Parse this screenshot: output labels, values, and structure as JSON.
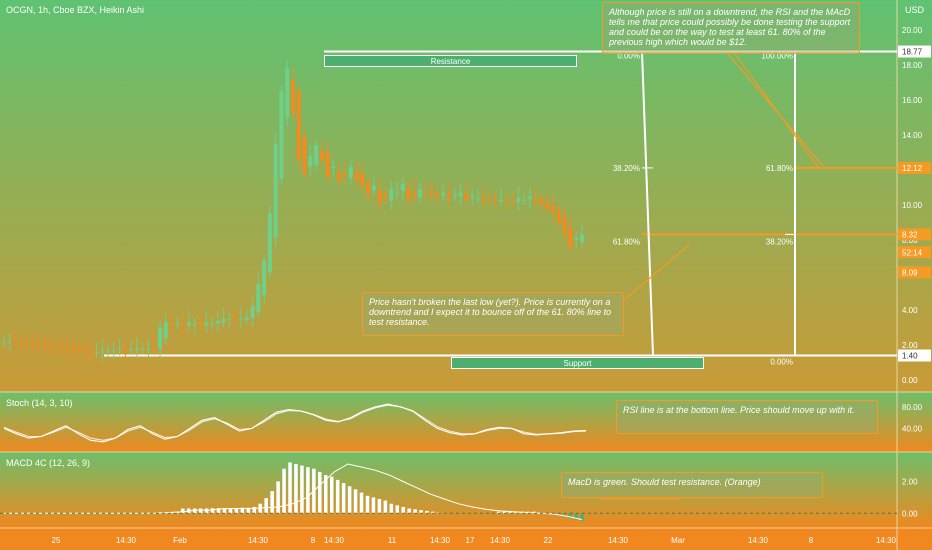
{
  "header": {
    "symbol": "OCGN, 1h, Cboe BZX, Heikin Ashi"
  },
  "currency": "USD",
  "colors": {
    "top": "#5fc272",
    "bottom": "#f58a1f",
    "up": "#6fd08a",
    "down": "#f58a1f",
    "line": "#ffffff",
    "accent": "#f59a23"
  },
  "chart_data": [
    {
      "type": "candlestick",
      "series": [
        {
          "name": "OCGN",
          "values": [
            2.2,
            2.2,
            2.15,
            2.1,
            2.1,
            2.05,
            2.0,
            1.95,
            1.9,
            1.85,
            1.8,
            1.75,
            1.7,
            1.65,
            1.6,
            1.55,
            1.6,
            1.65,
            1.7,
            1.7,
            1.75,
            1.7,
            1.75,
            1.8,
            1.8,
            1.8,
            1.75,
            3.0,
            3.3,
            3.1,
            3.2,
            3.0,
            3.3,
            3.2,
            3.1,
            3.3,
            3.2,
            3.4,
            3.5,
            3.5,
            3.4,
            3.5,
            3.6,
            4.2,
            5.5,
            6.8,
            9.5,
            13.5,
            16.5,
            17.8,
            15.2,
            12.6,
            11.8,
            12.8,
            13.4,
            12.6,
            11.6,
            12.2,
            11.4,
            11.7,
            12.2,
            11.4,
            11.1,
            10.6,
            11.1,
            10.1,
            10.4,
            10.9,
            10.7,
            11.2,
            10.3,
            10.6,
            10.9,
            10.7,
            10.6,
            10.5,
            10.7,
            10.4,
            10.6,
            10.7,
            10.3,
            10.5,
            10.4,
            10.3,
            10.3,
            10.2,
            10.3,
            10.2,
            10.2,
            10.4,
            10.3,
            10.5,
            10.2,
            10.1,
            9.8,
            9.6,
            9.0,
            8.4,
            7.6,
            8.1,
            8.32
          ]
        }
      ],
      "levels": {
        "resistance": 18.77,
        "support": 1.4,
        "fib_61_8": 8.32,
        "fib_38_2": 12.12
      },
      "price_axis": [
        "20.00",
        "18.00",
        "16.00",
        "14.00",
        "12.00",
        "10.00",
        "8.00",
        "6.00",
        "4.00",
        "2.00",
        "0.00"
      ],
      "price_tags": [
        "18.77",
        "12.12",
        "8.32",
        "52:14",
        "8.09",
        "1.40"
      ],
      "ylim": [
        0,
        20
      ]
    },
    {
      "type": "line",
      "title": "Stoch (14, 3, 10)",
      "series": [
        {
          "name": "%K",
          "values": [
            40,
            30,
            22,
            25,
            35,
            45,
            30,
            18,
            15,
            22,
            38,
            45,
            30,
            20,
            25,
            40,
            55,
            60,
            48,
            35,
            40,
            55,
            70,
            75,
            72,
            65,
            55,
            52,
            60,
            72,
            80,
            85,
            80,
            72,
            55,
            40,
            32,
            28,
            30,
            38,
            42,
            40,
            30,
            28,
            30,
            32,
            35,
            36
          ]
        },
        {
          "name": "%D",
          "values": [
            42,
            33,
            25,
            25,
            33,
            42,
            33,
            22,
            18,
            22,
            35,
            42,
            33,
            23,
            25,
            37,
            52,
            58,
            50,
            38,
            40,
            52,
            67,
            73,
            72,
            66,
            57,
            53,
            58,
            70,
            78,
            83,
            80,
            73,
            58,
            43,
            35,
            30,
            30,
            36,
            40,
            40,
            33,
            29,
            30,
            31,
            34,
            35
          ]
        }
      ],
      "axis": [
        "80.00",
        "40.00"
      ],
      "ylim": [
        0,
        100
      ]
    },
    {
      "type": "bar",
      "title": "MACD 4C (12, 26, 9)",
      "series": [
        {
          "name": "histogram",
          "values": [
            0,
            0,
            0,
            0,
            0,
            0,
            0,
            0,
            0,
            0,
            0,
            0,
            0,
            0,
            0,
            0,
            0,
            0,
            0,
            0,
            0,
            0,
            0,
            0,
            0,
            0,
            0.06,
            0.05,
            0.05,
            0.1,
            0.3,
            0.3,
            0.3,
            0.3,
            0.3,
            0.32,
            0.32,
            0.3,
            0.3,
            0.32,
            0.35,
            0.35,
            0.4,
            0.6,
            0.95,
            1.4,
            2.0,
            2.8,
            3.2,
            3.1,
            3.0,
            2.9,
            2.8,
            2.6,
            2.4,
            2.3,
            2.1,
            1.9,
            1.7,
            1.5,
            1.3,
            1.1,
            1.0,
            0.9,
            0.8,
            0.6,
            0.5,
            0.4,
            0.3,
            0.25,
            0.2,
            0.15,
            0.1,
            0.05,
            0,
            0,
            0,
            0,
            0,
            0,
            0,
            0,
            0,
            0.1,
            0.1,
            0.1,
            0.1,
            0.1,
            0.1,
            0.1,
            0,
            0,
            0,
            -0.1,
            -0.2,
            -0.3,
            -0.4,
            -0.5
          ]
        },
        {
          "name": "MACD",
          "values": [
            0,
            0,
            0,
            0,
            0,
            0,
            0,
            0,
            0,
            0,
            0,
            0,
            0.05,
            0.1,
            0.2,
            0.2,
            0.3,
            0.3,
            0.3,
            0.35,
            0.4,
            0.6,
            1.0,
            1.8,
            2.6,
            3.1,
            2.9,
            2.7,
            2.4,
            2.0,
            1.6,
            1.2,
            0.9,
            0.6,
            0.4,
            0.25,
            0.15,
            0.1,
            0.05,
            0,
            -0.05,
            -0.2,
            -0.4
          ]
        }
      ],
      "axis": [
        "2.00",
        "0.00"
      ],
      "ylim": [
        -0.8,
        3.6
      ]
    }
  ],
  "x_axis": [
    "25",
    "14:30",
    "Feb",
    "14:30",
    "8",
    "14:30",
    "11",
    "14:30",
    "17",
    "14:30",
    "22",
    "14:30",
    "Mar",
    "14:30",
    "8",
    "14:30"
  ],
  "fib": {
    "p0_left": "0.00%",
    "p382_left": "38.20%",
    "p618_left": "61.80%",
    "p100_left": "100.00%",
    "p100_right": "100.00%",
    "p618_right": "61.80%",
    "p382_right": "38.20%",
    "p0_right": "0.00%"
  },
  "labels": {
    "resistance": "Resistance",
    "support": "Support"
  },
  "notes": {
    "top": "Although price is still on a downtrend, the RSI and the MAcD tells me that price could possibly be done testing the support and could be on the way to test at least 61. 80% of the previous high which would be $12.",
    "price": "Price hasn't broken the last low (yet?). Price is currently on a downtrend and I expect it to bounce off of the 61. 80% line to test resistance.",
    "rsi": "RSI line is at the bottom line. Price should move up with it.",
    "macd": "MacD is green. Should test resistance. (Orange)"
  }
}
